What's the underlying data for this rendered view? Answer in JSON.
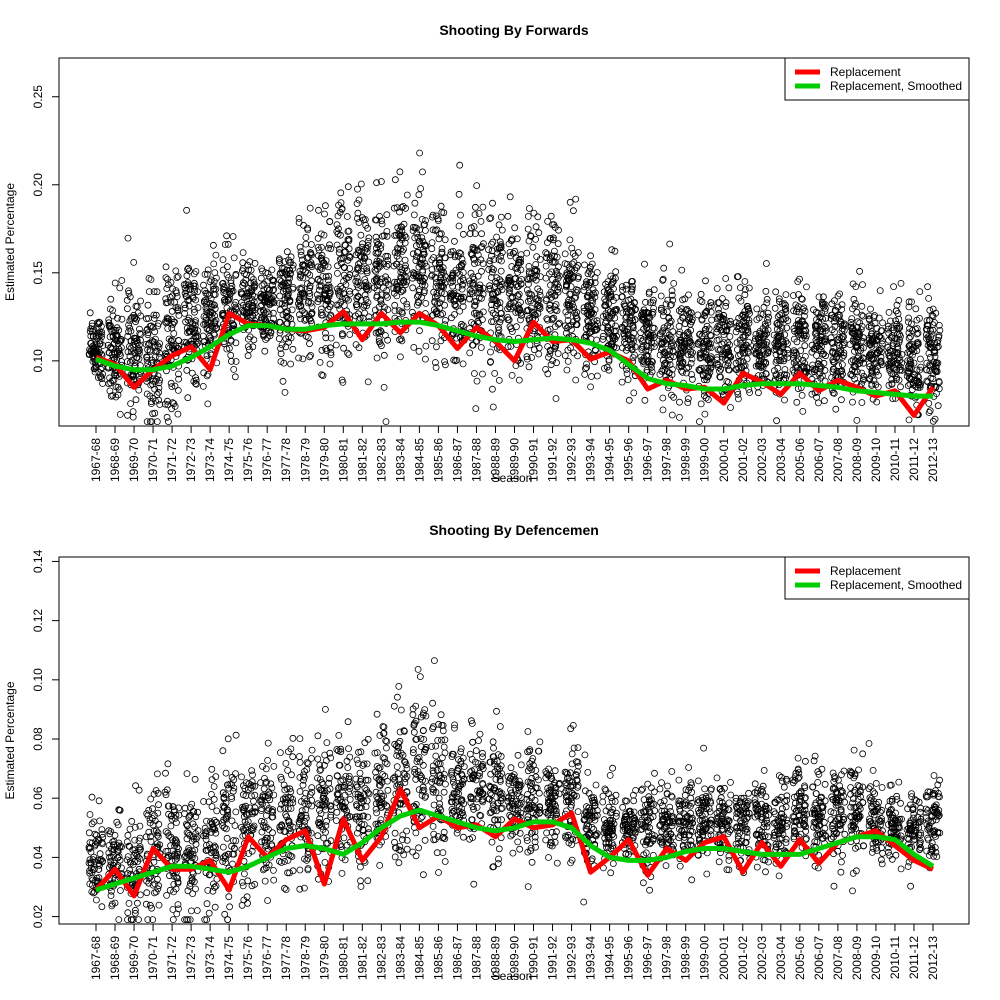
{
  "chart_data": [
    {
      "type": "scatter",
      "title": "Shooting By Forwards",
      "xlabel": "Season",
      "ylabel": "Estimated Percentage",
      "ylim": [
        0.063,
        0.272
      ],
      "yticks": [
        "0.10",
        "0.15",
        "0.20",
        "0.25"
      ],
      "categories": [
        "1967-68",
        "1968-69",
        "1969-70",
        "1970-71",
        "1971-72",
        "1972-73",
        "1973-74",
        "1974-75",
        "1975-76",
        "1976-77",
        "1977-78",
        "1978-79",
        "1979-80",
        "1980-81",
        "1981-82",
        "1982-83",
        "1983-84",
        "1984-85",
        "1985-86",
        "1986-87",
        "1987-88",
        "1988-89",
        "1989-90",
        "1990-91",
        "1991-92",
        "1992-93",
        "1993-94",
        "1994-95",
        "1995-96",
        "1996-97",
        "1997-98",
        "1998-99",
        "1999-00",
        "2000-01",
        "2001-02",
        "2002-03",
        "2003-04",
        "2005-06",
        "2006-07",
        "2007-08",
        "2008-09",
        "2009-10",
        "2010-11",
        "2011-12",
        "2012-13"
      ],
      "legend": {
        "position": "top-right",
        "entries": [
          "Replacement",
          "Replacement, Smoothed"
        ]
      },
      "colors": {
        "replacement": "#ff0000",
        "smoothed": "#00cd00",
        "points": "#000000"
      },
      "series": [
        {
          "name": "Replacement",
          "values": [
            0.102,
            0.098,
            0.085,
            0.095,
            0.103,
            0.108,
            0.095,
            0.127,
            0.121,
            0.12,
            0.118,
            0.117,
            0.119,
            0.128,
            0.112,
            0.127,
            0.116,
            0.127,
            0.12,
            0.107,
            0.119,
            0.111,
            0.1,
            0.122,
            0.111,
            0.112,
            0.101,
            0.105,
            0.1,
            0.084,
            0.089,
            0.084,
            0.085,
            0.076,
            0.093,
            0.088,
            0.081,
            0.093,
            0.083,
            0.089,
            0.085,
            0.08,
            0.083,
            0.069,
            0.085
          ]
        },
        {
          "name": "Replacement, Smoothed",
          "values": [
            0.101,
            0.097,
            0.095,
            0.095,
            0.097,
            0.102,
            0.108,
            0.115,
            0.12,
            0.12,
            0.118,
            0.118,
            0.12,
            0.121,
            0.121,
            0.121,
            0.122,
            0.122,
            0.12,
            0.117,
            0.114,
            0.112,
            0.111,
            0.112,
            0.113,
            0.112,
            0.11,
            0.106,
            0.098,
            0.09,
            0.087,
            0.086,
            0.084,
            0.084,
            0.086,
            0.087,
            0.087,
            0.087,
            0.086,
            0.085,
            0.083,
            0.082,
            0.081,
            0.08,
            0.08
          ]
        }
      ],
      "spread": {
        "centers": [
          0.107,
          0.106,
          0.105,
          0.106,
          0.112,
          0.12,
          0.124,
          0.128,
          0.13,
          0.131,
          0.133,
          0.14,
          0.141,
          0.146,
          0.148,
          0.147,
          0.15,
          0.153,
          0.149,
          0.143,
          0.142,
          0.14,
          0.136,
          0.138,
          0.137,
          0.135,
          0.126,
          0.122,
          0.12,
          0.114,
          0.109,
          0.108,
          0.108,
          0.112,
          0.112,
          0.109,
          0.109,
          0.11,
          0.11,
          0.108,
          0.109,
          0.108,
          0.106,
          0.103,
          0.104
        ],
        "sd": [
          0.01,
          0.015,
          0.017,
          0.02,
          0.02,
          0.02,
          0.017,
          0.016,
          0.013,
          0.012,
          0.018,
          0.02,
          0.022,
          0.024,
          0.02,
          0.022,
          0.022,
          0.02,
          0.02,
          0.02,
          0.022,
          0.022,
          0.02,
          0.022,
          0.022,
          0.02,
          0.016,
          0.016,
          0.016,
          0.015,
          0.015,
          0.015,
          0.015,
          0.017,
          0.015,
          0.014,
          0.014,
          0.015,
          0.015,
          0.015,
          0.015,
          0.014,
          0.014,
          0.016,
          0.014
        ]
      }
    },
    {
      "type": "scatter",
      "title": "Shooting By Defencemen",
      "xlabel": "Season",
      "ylabel": "Estimated Percentage",
      "ylim": [
        0.0175,
        0.1415
      ],
      "yticks": [
        "0.02",
        "0.04",
        "0.06",
        "0.08",
        "0.10",
        "0.12",
        "0.14"
      ],
      "categories": [
        "1967-68",
        "1968-69",
        "1969-70",
        "1970-71",
        "1971-72",
        "1972-73",
        "1973-74",
        "1974-75",
        "1975-76",
        "1976-77",
        "1977-78",
        "1978-79",
        "1979-80",
        "1980-81",
        "1981-82",
        "1982-83",
        "1983-84",
        "1984-85",
        "1985-86",
        "1986-87",
        "1987-88",
        "1988-89",
        "1989-90",
        "1990-91",
        "1991-92",
        "1992-93",
        "1993-94",
        "1994-95",
        "1995-96",
        "1996-97",
        "1997-98",
        "1998-99",
        "1999-00",
        "2000-01",
        "2001-02",
        "2002-03",
        "2003-04",
        "2005-06",
        "2006-07",
        "2007-08",
        "2008-09",
        "2009-10",
        "2010-11",
        "2011-12",
        "2012-13"
      ],
      "legend": {
        "position": "top-right",
        "entries": [
          "Replacement",
          "Replacement, Smoothed"
        ]
      },
      "colors": {
        "replacement": "#ff0000",
        "smoothed": "#00cd00",
        "points": "#000000"
      },
      "series": [
        {
          "name": "Replacement",
          "values": [
            0.029,
            0.036,
            0.027,
            0.043,
            0.036,
            0.036,
            0.039,
            0.029,
            0.047,
            0.04,
            0.046,
            0.049,
            0.031,
            0.053,
            0.039,
            0.047,
            0.063,
            0.05,
            0.054,
            0.05,
            0.051,
            0.047,
            0.053,
            0.05,
            0.051,
            0.055,
            0.035,
            0.04,
            0.046,
            0.034,
            0.043,
            0.039,
            0.045,
            0.047,
            0.035,
            0.045,
            0.037,
            0.046,
            0.038,
            0.045,
            0.047,
            0.049,
            0.044,
            0.039,
            0.036
          ]
        },
        {
          "name": "Replacement, Smoothed",
          "values": [
            0.029,
            0.031,
            0.033,
            0.035,
            0.037,
            0.037,
            0.036,
            0.035,
            0.037,
            0.04,
            0.043,
            0.044,
            0.043,
            0.041,
            0.045,
            0.05,
            0.054,
            0.056,
            0.054,
            0.052,
            0.05,
            0.049,
            0.05,
            0.052,
            0.052,
            0.05,
            0.044,
            0.04,
            0.039,
            0.039,
            0.04,
            0.042,
            0.043,
            0.043,
            0.042,
            0.041,
            0.041,
            0.041,
            0.043,
            0.045,
            0.047,
            0.047,
            0.046,
            0.041,
            0.037
          ]
        }
      ],
      "spread": {
        "centers": [
          0.038,
          0.038,
          0.037,
          0.04,
          0.041,
          0.042,
          0.043,
          0.049,
          0.049,
          0.052,
          0.053,
          0.055,
          0.058,
          0.06,
          0.058,
          0.06,
          0.064,
          0.068,
          0.064,
          0.063,
          0.061,
          0.058,
          0.058,
          0.06,
          0.059,
          0.062,
          0.052,
          0.051,
          0.05,
          0.05,
          0.052,
          0.052,
          0.052,
          0.051,
          0.051,
          0.052,
          0.051,
          0.055,
          0.054,
          0.055,
          0.056,
          0.052,
          0.05,
          0.049,
          0.053
        ],
        "sd": [
          0.007,
          0.008,
          0.01,
          0.01,
          0.011,
          0.011,
          0.012,
          0.014,
          0.012,
          0.011,
          0.011,
          0.011,
          0.012,
          0.012,
          0.012,
          0.012,
          0.014,
          0.014,
          0.014,
          0.009,
          0.01,
          0.01,
          0.009,
          0.009,
          0.008,
          0.009,
          0.008,
          0.007,
          0.006,
          0.007,
          0.007,
          0.007,
          0.007,
          0.007,
          0.007,
          0.007,
          0.007,
          0.008,
          0.009,
          0.008,
          0.009,
          0.007,
          0.006,
          0.006,
          0.007
        ]
      }
    }
  ]
}
